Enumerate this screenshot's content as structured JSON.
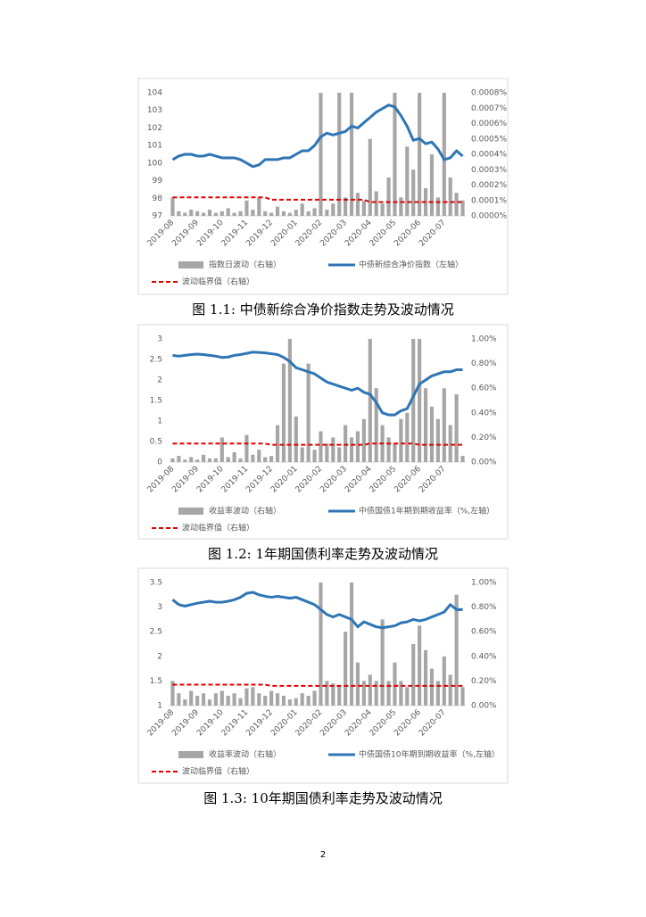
{
  "chart_data": [
    {
      "type": "bar_line",
      "caption": "图 1.1:  中债新综合净价指数走势及波动情况",
      "categories": [
        "2019-08",
        null,
        null,
        null,
        "2019-09",
        null,
        null,
        null,
        "2019-10",
        null,
        null,
        null,
        "2019-11",
        null,
        null,
        null,
        "2019-12",
        null,
        null,
        null,
        "2020-01",
        null,
        null,
        null,
        "2020-02",
        null,
        null,
        null,
        "2020-03",
        null,
        null,
        null,
        "2020-04",
        null,
        null,
        null,
        "2020-05",
        null,
        null,
        null,
        "2020-06",
        null,
        null,
        null,
        "2020-07",
        null,
        null,
        null
      ],
      "ylim": [
        97,
        104
      ],
      "yticks": [
        97,
        98,
        99,
        100,
        101,
        102,
        103,
        104
      ],
      "y2lim": [
        0,
        0.0008
      ],
      "y2ticks": [
        {
          "value": 0,
          "label": "0.0000%"
        },
        {
          "value": 0.0001,
          "label": "0.0001%"
        },
        {
          "value": 0.0002,
          "label": "0.0002%"
        },
        {
          "value": 0.0003,
          "label": "0.0003%"
        },
        {
          "value": 0.0004,
          "label": "0.0004%"
        },
        {
          "value": 0.0005,
          "label": "0.0005%"
        },
        {
          "value": 0.0006,
          "label": "0.0006%"
        },
        {
          "value": 0.0007,
          "label": "0.0007%"
        },
        {
          "value": 0.0008,
          "label": "0.0008%"
        }
      ],
      "grid": false,
      "series": [
        {
          "name": "指数日波动（右轴）",
          "type": "bar",
          "axis": "y2",
          "color": "#a6a6a6",
          "values": [
            0.00012,
            3e-05,
            2e-05,
            4e-05,
            3e-05,
            2e-05,
            4e-05,
            2e-05,
            3e-05,
            5e-05,
            2e-05,
            3e-05,
            0.0001,
            4e-05,
            0.00012,
            3e-05,
            2e-05,
            6e-05,
            3e-05,
            2e-05,
            4e-05,
            8e-05,
            3e-05,
            5e-05,
            0.0008,
            4e-05,
            8e-05,
            0.0008,
            0.00012,
            0.0008,
            0.00015,
            0.0001,
            0.0005,
            0.00016,
            8e-05,
            0.00025,
            0.0008,
            0.00012,
            0.00045,
            0.0003,
            0.0008,
            0.00018,
            0.0004,
            0.00012,
            0.0008,
            0.00025,
            0.00015,
            0.0001
          ]
        },
        {
          "name": "中债新综合净价指数（左轴）",
          "type": "line",
          "color": "#2e75b6",
          "values": [
            100.2,
            100.4,
            100.5,
            100.5,
            100.4,
            100.4,
            100.5,
            100.4,
            100.3,
            100.3,
            100.3,
            100.2,
            100.0,
            99.8,
            99.9,
            100.2,
            100.2,
            100.2,
            100.3,
            100.3,
            100.5,
            100.7,
            100.7,
            101.0,
            101.5,
            101.7,
            101.6,
            101.7,
            101.8,
            102.1,
            102.0,
            102.3,
            102.6,
            102.9,
            103.1,
            103.3,
            103.2,
            102.7,
            102.1,
            101.3,
            101.4,
            101.1,
            101.2,
            100.8,
            100.2,
            100.3,
            100.7,
            100.4
          ]
        },
        {
          "name": "波动临界值（右轴）",
          "type": "line",
          "dashed": true,
          "axis": "y2",
          "color": "#e00000",
          "values": [
            0.00012,
            0.00012,
            0.00012,
            0.00012,
            0.00012,
            0.00012,
            0.00012,
            0.00012,
            0.00012,
            0.00012,
            0.00012,
            0.00012,
            0.00012,
            0.00012,
            0.00012,
            0.00012,
            0.000105,
            0.000105,
            0.000105,
            0.000105,
            0.000105,
            0.000105,
            0.000105,
            0.000105,
            0.000105,
            0.000105,
            0.000105,
            0.000105,
            0.000105,
            0.000105,
            0.000105,
            0.000105,
            9e-05,
            9e-05,
            9e-05,
            9e-05,
            9e-05,
            9e-05,
            9e-05,
            9e-05,
            9e-05,
            9e-05,
            9e-05,
            9e-05,
            9e-05,
            9e-05,
            9e-05,
            9e-05
          ]
        }
      ]
    },
    {
      "type": "bar_line",
      "caption": "图 1.2:  1年期国债利率走势及波动情况",
      "categories": [
        "2019-08",
        null,
        null,
        null,
        "2019-09",
        null,
        null,
        null,
        "2019-10",
        null,
        null,
        null,
        "2019-11",
        null,
        null,
        null,
        "2019-12",
        null,
        null,
        null,
        "2020-01",
        null,
        null,
        null,
        "2020-02",
        null,
        null,
        null,
        "2020-03",
        null,
        null,
        null,
        "2020-04",
        null,
        null,
        null,
        "2020-05",
        null,
        null,
        null,
        "2020-06",
        null,
        null,
        null,
        "2020-07",
        null,
        null,
        null
      ],
      "ylim": [
        0,
        3
      ],
      "yticks": [
        0,
        0.5,
        1,
        1.5,
        2,
        2.5,
        3
      ],
      "y2lim": [
        0,
        1
      ],
      "y2ticks": [
        {
          "value": 0,
          "label": "0.00%"
        },
        {
          "value": 0.2,
          "label": "0.20%"
        },
        {
          "value": 0.4,
          "label": "0.40%"
        },
        {
          "value": 0.6,
          "label": "0.60%"
        },
        {
          "value": 0.8,
          "label": "0.80%"
        },
        {
          "value": 1,
          "label": "1.00%"
        }
      ],
      "grid": false,
      "series": [
        {
          "name": "收益率波动（右轴）",
          "type": "bar",
          "axis": "y2",
          "color": "#a6a6a6",
          "values": [
            0.03,
            0.05,
            0.02,
            0.04,
            0.02,
            0.06,
            0.03,
            0.03,
            0.2,
            0.04,
            0.08,
            0.03,
            0.22,
            0.06,
            0.1,
            0.04,
            0.05,
            0.3,
            0.8,
            1.0,
            0.37,
            0.12,
            0.8,
            0.1,
            0.25,
            0.15,
            0.2,
            0.12,
            0.3,
            0.2,
            0.25,
            0.35,
            1.0,
            0.6,
            0.3,
            0.2,
            0.15,
            0.35,
            0.4,
            1.0,
            1.0,
            0.6,
            0.45,
            0.35,
            0.6,
            0.3,
            0.55,
            0.05
          ]
        },
        {
          "name": "中债国债1年期到期收益率（%,左轴）",
          "type": "line",
          "color": "#2e75b6",
          "values": [
            2.6,
            2.58,
            2.6,
            2.62,
            2.63,
            2.62,
            2.6,
            2.58,
            2.55,
            2.56,
            2.6,
            2.62,
            2.65,
            2.68,
            2.67,
            2.66,
            2.64,
            2.62,
            2.55,
            2.45,
            2.3,
            2.25,
            2.2,
            2.15,
            2.05,
            1.95,
            1.9,
            1.85,
            1.8,
            1.75,
            1.8,
            1.7,
            1.65,
            1.45,
            1.2,
            1.15,
            1.15,
            1.25,
            1.3,
            1.6,
            1.9,
            2.0,
            2.1,
            2.15,
            2.2,
            2.2,
            2.25,
            2.25
          ]
        },
        {
          "name": "波动临界值（右轴）",
          "type": "line",
          "dashed": true,
          "axis": "y2",
          "color": "#e00000",
          "values": [
            0.15,
            0.15,
            0.15,
            0.15,
            0.15,
            0.15,
            0.15,
            0.15,
            0.15,
            0.15,
            0.15,
            0.15,
            0.15,
            0.15,
            0.15,
            0.15,
            0.14,
            0.14,
            0.14,
            0.14,
            0.14,
            0.14,
            0.14,
            0.14,
            0.14,
            0.14,
            0.14,
            0.14,
            0.14,
            0.14,
            0.14,
            0.14,
            0.15,
            0.15,
            0.15,
            0.15,
            0.15,
            0.15,
            0.15,
            0.15,
            0.14,
            0.14,
            0.14,
            0.14,
            0.14,
            0.14,
            0.14,
            0.14
          ]
        }
      ]
    },
    {
      "type": "bar_line",
      "caption": "图 1.3:  10年期国债利率走势及波动情况",
      "categories": [
        "2019-08",
        null,
        null,
        null,
        "2019-09",
        null,
        null,
        null,
        "2019-10",
        null,
        null,
        null,
        "2019-11",
        null,
        null,
        null,
        "2019-12",
        null,
        null,
        null,
        "2020-01",
        null,
        null,
        null,
        "2020-02",
        null,
        null,
        null,
        "2020-03",
        null,
        null,
        null,
        "2020-04",
        null,
        null,
        null,
        "2020-05",
        null,
        null,
        null,
        "2020-06",
        null,
        null,
        null,
        "2020-07",
        null,
        null,
        null
      ],
      "ylim": [
        1,
        3.5
      ],
      "yticks": [
        1,
        1.5,
        2,
        2.5,
        3,
        3.5
      ],
      "y2lim": [
        0,
        1
      ],
      "y2ticks": [
        {
          "value": 0,
          "label": "0.00%"
        },
        {
          "value": 0.2,
          "label": "0.20%"
        },
        {
          "value": 0.4,
          "label": "0.40%"
        },
        {
          "value": 0.6,
          "label": "0.60%"
        },
        {
          "value": 0.8,
          "label": "0.80%"
        },
        {
          "value": 1,
          "label": "1.00%"
        }
      ],
      "grid": false,
      "series": [
        {
          "name": "收益率波动（右轴）",
          "type": "bar",
          "axis": "y2",
          "color": "#a6a6a6",
          "values": [
            0.2,
            0.1,
            0.05,
            0.12,
            0.08,
            0.1,
            0.05,
            0.1,
            0.12,
            0.08,
            0.1,
            0.06,
            0.14,
            0.15,
            0.1,
            0.08,
            0.12,
            0.1,
            0.08,
            0.05,
            0.06,
            0.1,
            0.08,
            0.12,
            1.0,
            0.2,
            0.18,
            0.16,
            0.6,
            1.0,
            0.35,
            0.2,
            0.25,
            0.2,
            0.7,
            0.2,
            0.35,
            0.2,
            0.15,
            0.5,
            0.65,
            0.45,
            0.3,
            0.2,
            0.4,
            0.25,
            0.9,
            0.15
          ]
        },
        {
          "name": "中债国债10年期到期收益率（%,左轴）",
          "type": "line",
          "color": "#2e75b6",
          "values": [
            3.15,
            3.05,
            3.02,
            3.05,
            3.08,
            3.1,
            3.12,
            3.1,
            3.1,
            3.12,
            3.15,
            3.2,
            3.28,
            3.3,
            3.25,
            3.22,
            3.2,
            3.22,
            3.2,
            3.18,
            3.2,
            3.15,
            3.1,
            3.05,
            2.95,
            2.85,
            2.8,
            2.85,
            2.8,
            2.75,
            2.6,
            2.7,
            2.65,
            2.6,
            2.58,
            2.6,
            2.62,
            2.68,
            2.7,
            2.75,
            2.72,
            2.75,
            2.8,
            2.85,
            2.9,
            3.05,
            2.95,
            2.95
          ]
        },
        {
          "name": "波动临界值（右轴）",
          "type": "line",
          "dashed": true,
          "axis": "y2",
          "color": "#e00000",
          "values": [
            0.17,
            0.17,
            0.17,
            0.17,
            0.17,
            0.17,
            0.17,
            0.17,
            0.17,
            0.17,
            0.17,
            0.17,
            0.17,
            0.17,
            0.17,
            0.17,
            0.16,
            0.16,
            0.16,
            0.16,
            0.16,
            0.16,
            0.16,
            0.16,
            0.16,
            0.16,
            0.16,
            0.16,
            0.16,
            0.16,
            0.16,
            0.16,
            0.16,
            0.16,
            0.16,
            0.16,
            0.16,
            0.16,
            0.16,
            0.16,
            0.16,
            0.16,
            0.16,
            0.16,
            0.16,
            0.16,
            0.16,
            0.16
          ]
        }
      ]
    }
  ],
  "page_number": "2"
}
